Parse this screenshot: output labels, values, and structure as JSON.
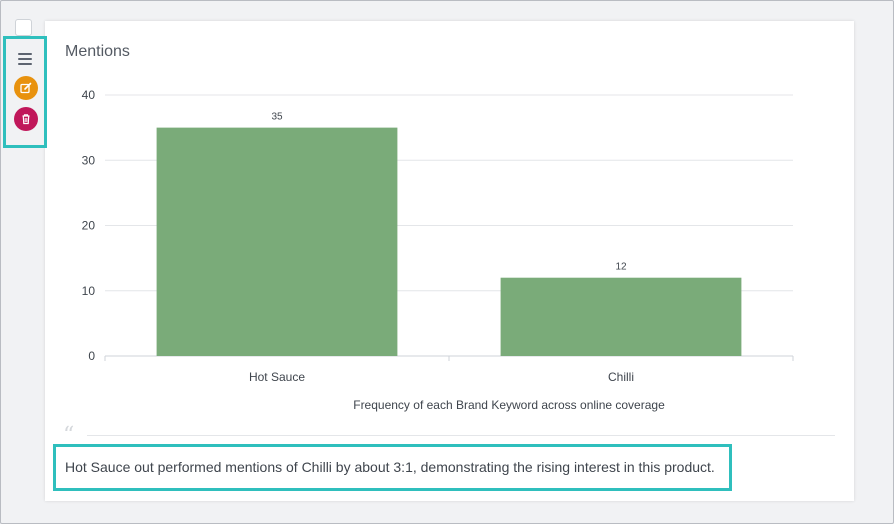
{
  "widget": {
    "title": "Mentions",
    "summary": "Hot Sauce out performed mentions of Chilli by about 3:1, demonstrating the rising interest in this product."
  },
  "toolbar": {
    "icons": [
      "menu-icon",
      "edit-icon",
      "trash-icon"
    ],
    "colors": {
      "edit": "#e8920e",
      "delete": "#c0175a",
      "highlight": "#2fbfbd"
    }
  },
  "chart_data": {
    "type": "bar",
    "title": "Mentions",
    "categories": [
      "Hot Sauce",
      "Chilli"
    ],
    "values": [
      35,
      12
    ],
    "data_labels": [
      "35",
      "12"
    ],
    "xlabel": "Frequency of each Brand Keyword across online coverage",
    "ylabel": "",
    "ylim": [
      0,
      40
    ],
    "yticks": [
      0,
      10,
      20,
      30,
      40
    ],
    "grid": true,
    "legend": "none",
    "bar_color": "#7aab79"
  }
}
